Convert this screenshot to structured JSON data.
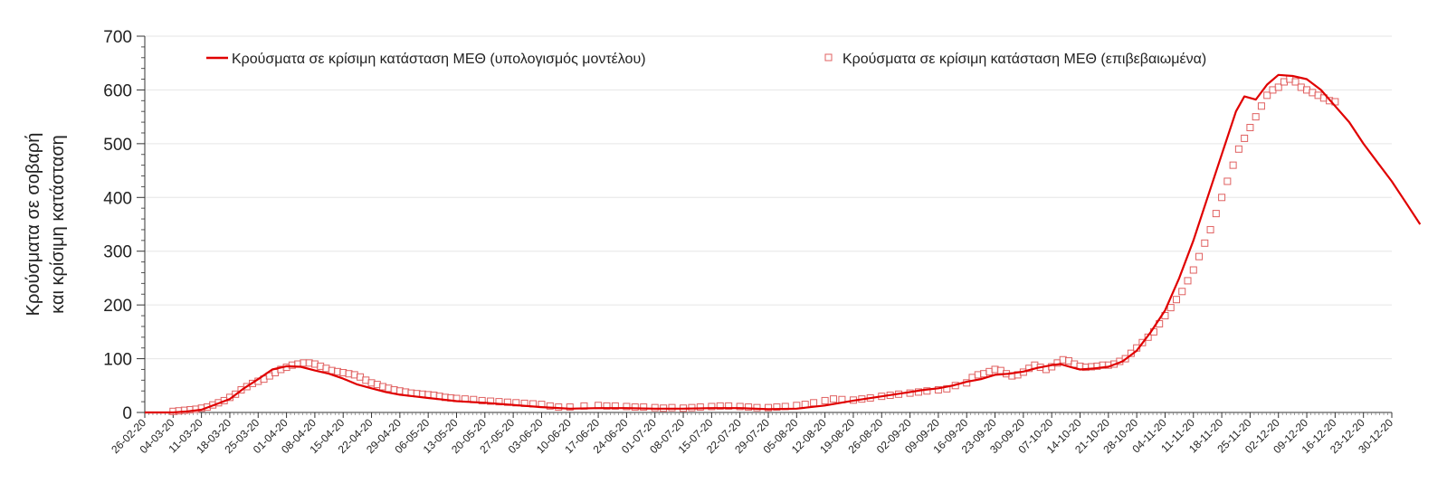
{
  "chart_data": {
    "type": "line",
    "title": "",
    "xlabel": "",
    "ylabel_lines": [
      "Κρούσματα σε σοβαρή",
      "και κρίσιμη κατάσταση"
    ],
    "ylim": [
      0,
      700
    ],
    "yticks": [
      0,
      100,
      200,
      300,
      400,
      500,
      600,
      700
    ],
    "grid": true,
    "legend_position": "top",
    "x_categories": [
      "26-02-20",
      "04-03-20",
      "11-03-20",
      "18-03-20",
      "25-03-20",
      "01-04-20",
      "08-04-20",
      "15-04-20",
      "22-04-20",
      "29-04-20",
      "06-05-20",
      "13-05-20",
      "20-05-20",
      "27-05-20",
      "03-06-20",
      "10-06-20",
      "17-06-20",
      "24-06-20",
      "01-07-20",
      "08-07-20",
      "15-07-20",
      "22-07-20",
      "29-07-20",
      "05-08-20",
      "12-08-20",
      "19-08-20",
      "26-08-20",
      "02-09-20",
      "09-09-20",
      "16-09-20",
      "23-09-20",
      "30-09-20",
      "07-10-20",
      "14-10-20",
      "21-10-20",
      "28-10-20",
      "04-11-20",
      "11-11-20",
      "18-11-20",
      "25-11-20",
      "02-12-20",
      "09-12-20",
      "16-12-20",
      "23-12-20",
      "30-12-20"
    ],
    "series": [
      {
        "name": "Κρούσματα σε κρίσιμη κατάσταση ΜΕΘ (υπολογισμός μοντέλου)",
        "kind": "line",
        "color": "#e00000",
        "points": [
          [
            0,
            0
          ],
          [
            1,
            0
          ],
          [
            1.5,
            2
          ],
          [
            2,
            5
          ],
          [
            2.5,
            15
          ],
          [
            3,
            25
          ],
          [
            3.5,
            45
          ],
          [
            4,
            62
          ],
          [
            4.5,
            80
          ],
          [
            5,
            86
          ],
          [
            5.5,
            85
          ],
          [
            6,
            78
          ],
          [
            6.5,
            72
          ],
          [
            7,
            63
          ],
          [
            7.5,
            52
          ],
          [
            8,
            45
          ],
          [
            8.5,
            38
          ],
          [
            9,
            33
          ],
          [
            9.5,
            30
          ],
          [
            10,
            27
          ],
          [
            10.5,
            24
          ],
          [
            11,
            21
          ],
          [
            12,
            18
          ],
          [
            13,
            14
          ],
          [
            14,
            10
          ],
          [
            15,
            7
          ],
          [
            16,
            8
          ],
          [
            17,
            8
          ],
          [
            18,
            7
          ],
          [
            19,
            7
          ],
          [
            20,
            8
          ],
          [
            21,
            8
          ],
          [
            22,
            6
          ],
          [
            23,
            7
          ],
          [
            24,
            13
          ],
          [
            25,
            22
          ],
          [
            26,
            30
          ],
          [
            27,
            38
          ],
          [
            27.5,
            42
          ],
          [
            28,
            45
          ],
          [
            28.5,
            50
          ],
          [
            29,
            57
          ],
          [
            29.5,
            62
          ],
          [
            30,
            70
          ],
          [
            30.5,
            72
          ],
          [
            31,
            76
          ],
          [
            31.5,
            83
          ],
          [
            32,
            88
          ],
          [
            32.3,
            90
          ],
          [
            32.7,
            84
          ],
          [
            33,
            80
          ],
          [
            33.5,
            82
          ],
          [
            34,
            85
          ],
          [
            34.5,
            95
          ],
          [
            35,
            115
          ],
          [
            35.5,
            150
          ],
          [
            36,
            190
          ],
          [
            36.5,
            250
          ],
          [
            37,
            320
          ],
          [
            37.5,
            400
          ],
          [
            38,
            480
          ],
          [
            38.5,
            560
          ],
          [
            38.8,
            588
          ],
          [
            39,
            585
          ],
          [
            39.2,
            582
          ],
          [
            39.6,
            610
          ],
          [
            40,
            628
          ],
          [
            40.5,
            626
          ],
          [
            41,
            620
          ],
          [
            41.5,
            600
          ],
          [
            42,
            570
          ],
          [
            42.5,
            540
          ],
          [
            43,
            500
          ],
          [
            43.5,
            465
          ],
          [
            44,
            430
          ],
          [
            44.5,
            390
          ],
          [
            45,
            350
          ]
        ]
      },
      {
        "name": "Κρούσματα σε κρίσιμη κατάσταση ΜΕΘ (επιβεβαιωμένα)",
        "kind": "scatter",
        "color": "#e06060",
        "points": [
          [
            1.0,
            2
          ],
          [
            1.2,
            3
          ],
          [
            1.4,
            4
          ],
          [
            1.6,
            5
          ],
          [
            1.8,
            6
          ],
          [
            2.0,
            8
          ],
          [
            2.2,
            10
          ],
          [
            2.4,
            14
          ],
          [
            2.6,
            18
          ],
          [
            2.8,
            22
          ],
          [
            3.0,
            28
          ],
          [
            3.2,
            34
          ],
          [
            3.4,
            42
          ],
          [
            3.6,
            48
          ],
          [
            3.8,
            54
          ],
          [
            4.0,
            58
          ],
          [
            4.2,
            62
          ],
          [
            4.4,
            68
          ],
          [
            4.6,
            74
          ],
          [
            4.8,
            80
          ],
          [
            5.0,
            84
          ],
          [
            5.2,
            88
          ],
          [
            5.4,
            90
          ],
          [
            5.6,
            92
          ],
          [
            5.8,
            92
          ],
          [
            6.0,
            90
          ],
          [
            6.2,
            86
          ],
          [
            6.4,
            82
          ],
          [
            6.6,
            78
          ],
          [
            6.8,
            76
          ],
          [
            7.0,
            74
          ],
          [
            7.2,
            72
          ],
          [
            7.4,
            70
          ],
          [
            7.6,
            66
          ],
          [
            7.8,
            60
          ],
          [
            8.0,
            55
          ],
          [
            8.2,
            52
          ],
          [
            8.4,
            48
          ],
          [
            8.6,
            45
          ],
          [
            8.8,
            42
          ],
          [
            9.0,
            40
          ],
          [
            9.2,
            38
          ],
          [
            9.4,
            36
          ],
          [
            9.6,
            35
          ],
          [
            9.8,
            34
          ],
          [
            10.0,
            33
          ],
          [
            10.2,
            32
          ],
          [
            10.4,
            30
          ],
          [
            10.6,
            28
          ],
          [
            10.8,
            27
          ],
          [
            11.0,
            26
          ],
          [
            11.3,
            25
          ],
          [
            11.6,
            24
          ],
          [
            11.9,
            22
          ],
          [
            12.2,
            21
          ],
          [
            12.5,
            20
          ],
          [
            12.8,
            19
          ],
          [
            13.1,
            18
          ],
          [
            13.4,
            17
          ],
          [
            13.7,
            16
          ],
          [
            14.0,
            15
          ],
          [
            14.3,
            12
          ],
          [
            14.6,
            10
          ],
          [
            15.0,
            10
          ],
          [
            15.5,
            12
          ],
          [
            16.0,
            13
          ],
          [
            16.3,
            12
          ],
          [
            16.6,
            12
          ],
          [
            17.0,
            11
          ],
          [
            17.3,
            10
          ],
          [
            17.6,
            10
          ],
          [
            18.0,
            9
          ],
          [
            18.3,
            8
          ],
          [
            18.6,
            9
          ],
          [
            19.0,
            8
          ],
          [
            19.3,
            9
          ],
          [
            19.6,
            10
          ],
          [
            20.0,
            11
          ],
          [
            20.3,
            12
          ],
          [
            20.6,
            12
          ],
          [
            21.0,
            11
          ],
          [
            21.3,
            10
          ],
          [
            21.6,
            9
          ],
          [
            22.0,
            9
          ],
          [
            22.3,
            10
          ],
          [
            22.6,
            11
          ],
          [
            23.0,
            13
          ],
          [
            23.3,
            15
          ],
          [
            23.6,
            18
          ],
          [
            24.0,
            22
          ],
          [
            24.3,
            25
          ],
          [
            24.6,
            24
          ],
          [
            25.0,
            23
          ],
          [
            25.3,
            25
          ],
          [
            25.6,
            27
          ],
          [
            26.0,
            30
          ],
          [
            26.3,
            32
          ],
          [
            26.6,
            34
          ],
          [
            27.0,
            36
          ],
          [
            27.3,
            38
          ],
          [
            27.6,
            40
          ],
          [
            28.0,
            42
          ],
          [
            28.3,
            44
          ],
          [
            28.6,
            50
          ],
          [
            29.0,
            55
          ],
          [
            29.2,
            65
          ],
          [
            29.4,
            70
          ],
          [
            29.6,
            72
          ],
          [
            29.8,
            76
          ],
          [
            30.0,
            80
          ],
          [
            30.2,
            78
          ],
          [
            30.4,
            72
          ],
          [
            30.6,
            68
          ],
          [
            30.8,
            70
          ],
          [
            31.0,
            75
          ],
          [
            31.2,
            82
          ],
          [
            31.4,
            88
          ],
          [
            31.6,
            84
          ],
          [
            31.8,
            80
          ],
          [
            32.0,
            85
          ],
          [
            32.2,
            92
          ],
          [
            32.4,
            98
          ],
          [
            32.6,
            96
          ],
          [
            32.8,
            90
          ],
          [
            33.0,
            86
          ],
          [
            33.2,
            84
          ],
          [
            33.4,
            85
          ],
          [
            33.6,
            86
          ],
          [
            33.8,
            88
          ],
          [
            34.0,
            88
          ],
          [
            34.2,
            90
          ],
          [
            34.4,
            95
          ],
          [
            34.6,
            100
          ],
          [
            34.8,
            110
          ],
          [
            35.0,
            120
          ],
          [
            35.2,
            130
          ],
          [
            35.4,
            140
          ],
          [
            35.6,
            150
          ],
          [
            35.8,
            165
          ],
          [
            36.0,
            180
          ],
          [
            36.2,
            195
          ],
          [
            36.4,
            210
          ],
          [
            36.6,
            225
          ],
          [
            36.8,
            245
          ],
          [
            37.0,
            265
          ],
          [
            37.2,
            290
          ],
          [
            37.4,
            315
          ],
          [
            37.6,
            340
          ],
          [
            37.8,
            370
          ],
          [
            38.0,
            400
          ],
          [
            38.2,
            430
          ],
          [
            38.4,
            460
          ],
          [
            38.6,
            490
          ],
          [
            38.8,
            510
          ],
          [
            39.0,
            530
          ],
          [
            39.2,
            550
          ],
          [
            39.4,
            570
          ],
          [
            39.6,
            590
          ],
          [
            39.8,
            600
          ],
          [
            40.0,
            605
          ],
          [
            40.2,
            615
          ],
          [
            40.4,
            620
          ],
          [
            40.6,
            615
          ],
          [
            40.8,
            605
          ],
          [
            41.0,
            600
          ],
          [
            41.2,
            595
          ],
          [
            41.4,
            590
          ],
          [
            41.6,
            585
          ],
          [
            41.8,
            580
          ],
          [
            42.0,
            578
          ]
        ]
      }
    ]
  }
}
